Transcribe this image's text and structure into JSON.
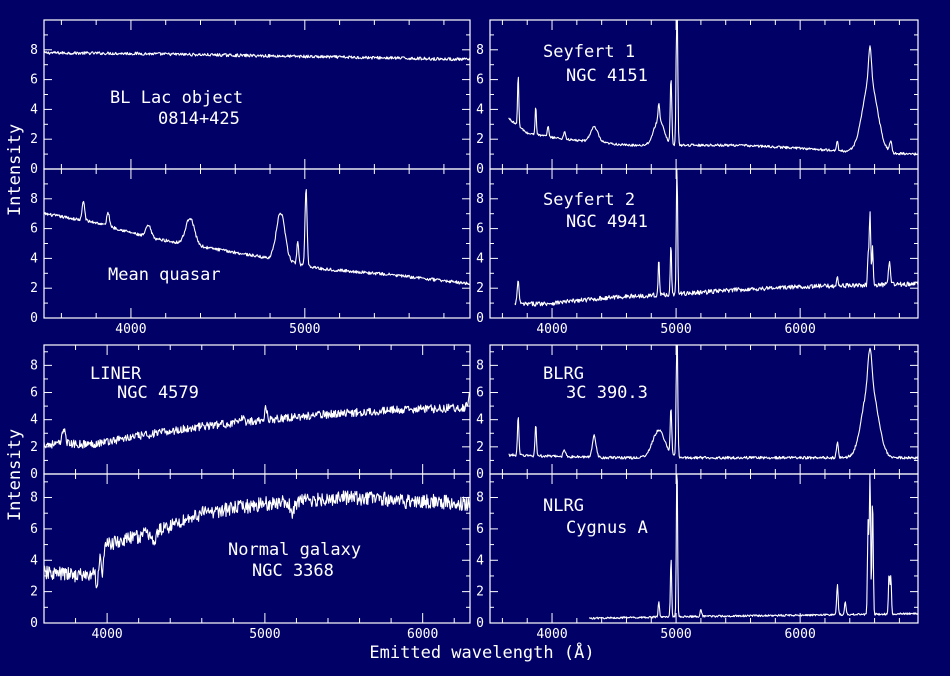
{
  "figure": {
    "background_color": "#000066",
    "foreground_color": "#ffffff",
    "xlabel": "Emitted wavelength (Å)",
    "ylabel_top": "Intensity",
    "ylabel_bottom": "Intensity"
  },
  "chart_data": [
    {
      "id": "bl-lac",
      "type": "line",
      "title": "BL Lac object",
      "subtitle": "0814+425",
      "xlim": [
        3500,
        5950
      ],
      "ylim": [
        0,
        10
      ],
      "yticks": [
        0,
        2,
        4,
        6,
        8
      ],
      "xticks": [
        4000,
        5000
      ],
      "xticks_labeled": false,
      "continuum": [
        [
          3500,
          7.8
        ],
        [
          4000,
          7.75
        ],
        [
          4500,
          7.65
        ],
        [
          5000,
          7.55
        ],
        [
          5500,
          7.45
        ],
        [
          5950,
          7.35
        ]
      ],
      "lines": [],
      "noise": 0.1
    },
    {
      "id": "mean-quasar",
      "type": "line",
      "title": "Mean quasar",
      "subtitle": "",
      "xlim": [
        3500,
        5950
      ],
      "ylim": [
        0,
        10
      ],
      "yticks": [
        0,
        2,
        4,
        6,
        8
      ],
      "xticks": [
        4000,
        5000
      ],
      "xticks_labeled": true,
      "continuum": [
        [
          3500,
          7.0
        ],
        [
          3800,
          6.4
        ],
        [
          4100,
          5.4
        ],
        [
          4500,
          4.6
        ],
        [
          4800,
          4.0
        ],
        [
          5100,
          3.3
        ],
        [
          5500,
          2.9
        ],
        [
          5950,
          2.3
        ]
      ],
      "lines": [
        [
          3727,
          1.3,
          7
        ],
        [
          3869,
          0.9,
          8
        ],
        [
          4101,
          0.8,
          15
        ],
        [
          4340,
          1.8,
          25
        ],
        [
          4861,
          3.2,
          25
        ],
        [
          4959,
          1.6,
          5
        ],
        [
          5007,
          5.2,
          6
        ]
      ],
      "noise": 0.1
    },
    {
      "id": "seyfert-1",
      "type": "line",
      "title": "Seyfert 1",
      "subtitle": "NGC 4151",
      "xlim": [
        3500,
        6950
      ],
      "ylim": [
        0,
        10
      ],
      "yticks": [
        0,
        2,
        4,
        6,
        8
      ],
      "xticks": [
        4000,
        5000,
        6000
      ],
      "xticks_labeled": false,
      "continuum": [
        [
          3650,
          3.4
        ],
        [
          3800,
          2.4
        ],
        [
          4100,
          2.0
        ],
        [
          4600,
          1.6
        ],
        [
          5000,
          1.6
        ],
        [
          5500,
          1.6
        ],
        [
          6000,
          1.4
        ],
        [
          6500,
          1.1
        ],
        [
          6950,
          1.0
        ]
      ],
      "lines": [
        [
          3727,
          3.5,
          5
        ],
        [
          3869,
          2.0,
          5
        ],
        [
          3968,
          0.8,
          5
        ],
        [
          4101,
          0.5,
          8
        ],
        [
          4340,
          1.0,
          30
        ],
        [
          4861,
          1.7,
          40
        ],
        [
          4861,
          1.2,
          6
        ],
        [
          4959,
          4.5,
          6
        ],
        [
          5007,
          10.5,
          6
        ],
        [
          6300,
          0.7,
          6
        ],
        [
          6563,
          4.8,
          60
        ],
        [
          6563,
          2.3,
          12
        ],
        [
          6730,
          0.8,
          8
        ]
      ],
      "noise": 0.08
    },
    {
      "id": "seyfert-2",
      "type": "line",
      "title": "Seyfert 2",
      "subtitle": "NGC 4941",
      "xlim": [
        3500,
        6950
      ],
      "ylim": [
        0,
        10
      ],
      "yticks": [
        0,
        2,
        4,
        6,
        8
      ],
      "xticks": [
        4000,
        5000,
        6000
      ],
      "xticks_labeled": true,
      "continuum": [
        [
          3700,
          0.9
        ],
        [
          4000,
          1.0
        ],
        [
          4500,
          1.4
        ],
        [
          5000,
          1.6
        ],
        [
          5500,
          1.9
        ],
        [
          6000,
          2.1
        ],
        [
          6500,
          2.2
        ],
        [
          6950,
          2.3
        ]
      ],
      "lines": [
        [
          3727,
          1.5,
          8
        ],
        [
          4861,
          2.5,
          5
        ],
        [
          4959,
          3.5,
          5
        ],
        [
          5007,
          9.0,
          5
        ],
        [
          6300,
          0.6,
          6
        ],
        [
          6548,
          1.8,
          5
        ],
        [
          6563,
          4.8,
          6
        ],
        [
          6584,
          2.5,
          5
        ],
        [
          6720,
          1.5,
          8
        ]
      ],
      "noise": 0.15
    },
    {
      "id": "liner",
      "type": "line",
      "title": "LINER",
      "subtitle": "NGC 4579",
      "xlim": [
        3600,
        6300
      ],
      "ylim": [
        0,
        9.5
      ],
      "yticks": [
        0,
        2,
        4,
        6,
        8
      ],
      "xticks": [
        4000,
        5000,
        6000
      ],
      "xticks_labeled": false,
      "continuum": [
        [
          3600,
          2.2
        ],
        [
          3900,
          2.2
        ],
        [
          4200,
          2.8
        ],
        [
          4600,
          3.5
        ],
        [
          5000,
          4.0
        ],
        [
          5400,
          4.4
        ],
        [
          5800,
          4.7
        ],
        [
          6300,
          4.9
        ]
      ],
      "lines": [
        [
          3727,
          1.2,
          10
        ],
        [
          4861,
          0.4,
          8
        ],
        [
          5007,
          0.8,
          8
        ],
        [
          6300,
          0.9,
          12
        ],
        [
          6563,
          3.5,
          12
        ],
        [
          6730,
          1.6,
          12
        ]
      ],
      "noise": 0.3
    },
    {
      "id": "normal-galaxy",
      "type": "line",
      "title": "Normal galaxy",
      "subtitle": "NGC 3368",
      "xlim": [
        3600,
        6300
      ],
      "ylim": [
        0,
        9.5
      ],
      "yticks": [
        0,
        2,
        4,
        6,
        8
      ],
      "xticks": [
        4000,
        5000,
        6000
      ],
      "xticks_labeled": true,
      "continuum": [
        [
          3600,
          3.2
        ],
        [
          3900,
          3.0
        ],
        [
          4000,
          5.0
        ],
        [
          4300,
          5.8
        ],
        [
          4600,
          7.0
        ],
        [
          5000,
          7.6
        ],
        [
          5500,
          8.0
        ],
        [
          6000,
          7.8
        ],
        [
          6300,
          7.6
        ]
      ],
      "lines": [
        [
          3934,
          -1.5,
          6
        ],
        [
          3968,
          -1.2,
          6
        ],
        [
          4300,
          -0.9,
          10
        ],
        [
          5175,
          -0.8,
          12
        ],
        [
          5890,
          -0.6,
          8
        ],
        [
          6563,
          0.8,
          8
        ]
      ],
      "noise": 0.45
    },
    {
      "id": "blrg",
      "type": "line",
      "title": "BLRG",
      "subtitle": "3C 390.3",
      "xlim": [
        3500,
        6950
      ],
      "ylim": [
        0,
        9.5
      ],
      "yticks": [
        0,
        2,
        4,
        6,
        8
      ],
      "xticks": [
        4000,
        5000,
        6000
      ],
      "xticks_labeled": false,
      "continuum": [
        [
          3650,
          1.4
        ],
        [
          4000,
          1.3
        ],
        [
          4500,
          1.2
        ],
        [
          5000,
          1.2
        ],
        [
          5500,
          1.2
        ],
        [
          6000,
          1.2
        ],
        [
          6500,
          1.2
        ],
        [
          6950,
          1.2
        ]
      ],
      "lines": [
        [
          3727,
          2.8,
          6
        ],
        [
          3869,
          2.3,
          6
        ],
        [
          4101,
          0.5,
          10
        ],
        [
          4340,
          1.6,
          15
        ],
        [
          4861,
          2.0,
          50
        ],
        [
          4959,
          3.4,
          6
        ],
        [
          5007,
          9.5,
          6
        ],
        [
          6300,
          1.1,
          8
        ],
        [
          6563,
          5.6,
          60
        ],
        [
          6563,
          2.5,
          15
        ]
      ],
      "noise": 0.1
    },
    {
      "id": "nlrg",
      "type": "line",
      "title": "NLRG",
      "subtitle": "Cygnus A",
      "xlim": [
        3500,
        6950
      ],
      "ylim": [
        0,
        9.5
      ],
      "yticks": [
        0,
        2,
        4,
        6,
        8
      ],
      "xticks": [
        4000,
        5000,
        6000
      ],
      "xticks_labeled": true,
      "continuum": [
        [
          4300,
          0.3
        ],
        [
          5000,
          0.4
        ],
        [
          5500,
          0.45
        ],
        [
          6000,
          0.5
        ],
        [
          6500,
          0.55
        ],
        [
          6950,
          0.6
        ]
      ],
      "lines": [
        [
          4861,
          1.0,
          5
        ],
        [
          4959,
          3.8,
          5
        ],
        [
          5007,
          10.0,
          5
        ],
        [
          5200,
          0.5,
          6
        ],
        [
          6300,
          1.9,
          6
        ],
        [
          6364,
          0.8,
          6
        ],
        [
          6548,
          6.0,
          5
        ],
        [
          6563,
          9.6,
          5
        ],
        [
          6584,
          7.5,
          5
        ],
        [
          6717,
          2.6,
          5
        ],
        [
          6731,
          2.4,
          5
        ]
      ],
      "noise": 0.06
    }
  ]
}
